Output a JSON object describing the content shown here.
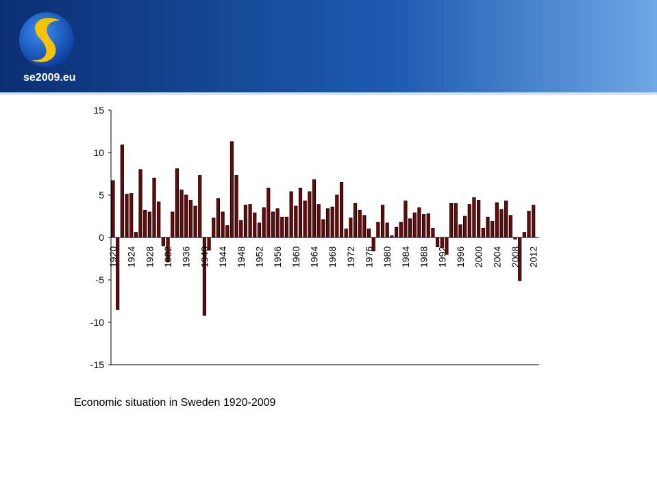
{
  "header": {
    "logo_text": "se2009.eu"
  },
  "chart_data": {
    "type": "bar",
    "title": "Economic situation in Sweden 1920-2009",
    "categories": [
      "1920",
      null,
      null,
      null,
      "1924",
      null,
      null,
      null,
      "1928",
      null,
      null,
      null,
      "1932",
      null,
      null,
      null,
      "1936",
      null,
      null,
      null,
      "1940",
      null,
      null,
      null,
      "1944",
      null,
      null,
      null,
      "1948",
      null,
      null,
      null,
      "1952",
      null,
      null,
      null,
      "1956",
      null,
      null,
      null,
      "1960",
      null,
      null,
      null,
      "1964",
      null,
      null,
      null,
      "1968",
      null,
      null,
      null,
      "1972",
      null,
      null,
      null,
      "1976",
      null,
      null,
      null,
      "1980",
      null,
      null,
      null,
      "1984",
      null,
      null,
      null,
      "1988",
      null,
      null,
      null,
      "1992",
      null,
      null,
      null,
      "1996",
      null,
      null,
      null,
      "2000",
      null,
      null,
      null,
      "2004",
      null,
      null,
      null,
      "2008",
      null,
      null,
      null,
      "2012"
    ],
    "values": [
      6.7,
      -8.5,
      10.9,
      5.1,
      5.2,
      0.6,
      8.0,
      3.2,
      3.0,
      7.0,
      4.2,
      -1.0,
      -2.9,
      3.0,
      8.1,
      5.6,
      5.0,
      4.4,
      3.7,
      7.3,
      -9.2,
      -1.5,
      2.3,
      4.6,
      3.0,
      1.4,
      11.3,
      7.3,
      2.0,
      3.8,
      3.9,
      2.9,
      1.7,
      3.5,
      5.8,
      3.0,
      3.4,
      2.4,
      2.4,
      5.4,
      3.7,
      5.8,
      4.3,
      5.4,
      6.8,
      3.9,
      2.1,
      3.4,
      3.6,
      5.0,
      6.5,
      1.0,
      2.3,
      4.0,
      3.2,
      2.6,
      1.0,
      -1.6,
      1.8,
      3.8,
      1.7,
      0.2,
      1.2,
      1.8,
      4.3,
      2.2,
      2.9,
      3.5,
      2.7,
      2.8,
      1.1,
      -1.1,
      -1.2,
      -2.0,
      4.0,
      4.0,
      1.5,
      2.5,
      3.9,
      4.7,
      4.4,
      1.1,
      2.4,
      1.9,
      4.1,
      3.3,
      4.3,
      2.6,
      -0.2,
      -5.1,
      0.6,
      3.1,
      3.8
    ],
    "color": "#6b0a0a",
    "ylim": [
      -15,
      15
    ],
    "yticks": [
      -15,
      -10,
      -5,
      0,
      5,
      10,
      15
    ]
  }
}
